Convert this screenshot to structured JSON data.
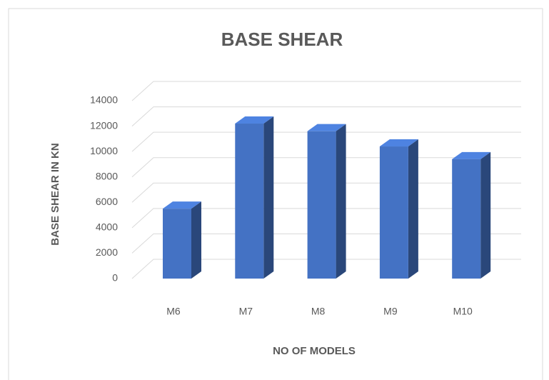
{
  "chart_data": {
    "type": "bar",
    "title": "BASE SHEAR",
    "x_label": "NO OF MODELS",
    "y_label": "BASE SHEAR  IN KN",
    "categories": [
      "M6",
      "M7",
      "M8",
      "M9",
      "M10"
    ],
    "values": [
      5500,
      12200,
      11600,
      10400,
      9400
    ],
    "color": "#4472c4",
    "ylim": [
      0,
      14000
    ],
    "yticks": [
      0,
      2000,
      4000,
      6000,
      8000,
      10000,
      12000,
      14000
    ],
    "grid": true
  }
}
